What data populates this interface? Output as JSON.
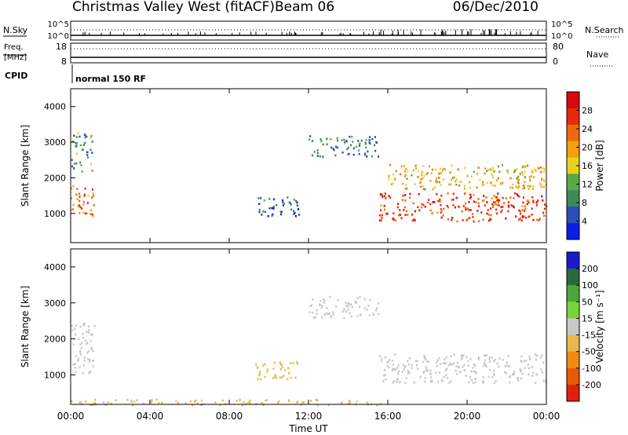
{
  "header": {
    "title": "Christmas Valley West (fitACF)",
    "beam": "Beam 06",
    "date": "06/Dec/2010"
  },
  "top_panels": {
    "nsky_label": "N.Sky",
    "nsearch_label": "N.Search",
    "freq_label_1": "Freq.",
    "freq_label_2": "[MHz]",
    "nave_label": "Nave",
    "cpid_label": "CPID",
    "cpid_text": "normal 150 RF",
    "noise_ticks_left": [
      "10^5",
      "10^0"
    ],
    "noise_ticks_right": [
      "10^5",
      "10^0"
    ],
    "freq_ticks": [
      "18",
      "8"
    ],
    "nave_ticks": [
      "80",
      "0"
    ]
  },
  "colors": {
    "power_scale": [
      "#0a1ee6",
      "#2a4fb8",
      "#3d8a5a",
      "#5aa84a",
      "#e6d21e",
      "#f0a010",
      "#f06a0a",
      "#e62a0a",
      "#d80a0a"
    ],
    "velocity_scale": [
      "#1a1ad0",
      "#2a6a3a",
      "#4aa83a",
      "#7ad43a",
      "#c8c8c8",
      "#e8b84a",
      "#f08a10",
      "#e85a0a",
      "#e0200a"
    ]
  },
  "chart_data": [
    {
      "type": "heatmap",
      "name": "power",
      "xlabel": "",
      "ylabel": "Slant Range [km]",
      "xlim": [
        "00:00",
        "24:00"
      ],
      "ylim": [
        180,
        4500
      ],
      "yticks": [
        "4000",
        "3000",
        "2000",
        "1000"
      ],
      "colorbar_label": "Power [dB]",
      "colorbar_ticks": [
        "28",
        "24",
        "20",
        "16",
        "12",
        "8",
        "4"
      ],
      "clim": [
        0,
        32
      ],
      "regions": [
        {
          "t0": 0.0,
          "t1": 1.2,
          "r0": 900,
          "r1": 1800,
          "level": 22
        },
        {
          "t0": 0.0,
          "t1": 1.1,
          "r0": 2200,
          "r1": 3300,
          "level": 10
        },
        {
          "t0": 9.2,
          "t1": 11.5,
          "r0": 950,
          "r1": 1500,
          "level": 6
        },
        {
          "t0": 12.0,
          "t1": 15.5,
          "r0": 2600,
          "r1": 3200,
          "level": 9
        },
        {
          "t0": 15.5,
          "t1": 24.0,
          "r0": 800,
          "r1": 1600,
          "level": 26
        },
        {
          "t0": 16.0,
          "t1": 24.0,
          "r0": 1700,
          "r1": 2400,
          "level": 18
        }
      ]
    },
    {
      "type": "heatmap",
      "name": "velocity",
      "xlabel": "Time UT",
      "ylabel": "Slant Range [km]",
      "xlim": [
        "00:00",
        "24:00"
      ],
      "ylim": [
        180,
        4500
      ],
      "xticks": [
        "00:00",
        "04:00",
        "08:00",
        "12:00",
        "16:00",
        "20:00",
        "00:00"
      ],
      "yticks": [
        "4000",
        "3000",
        "2000",
        "1000"
      ],
      "colorbar_label": "Velocity [m s⁻¹]",
      "colorbar_ticks": [
        "200",
        "100",
        "50",
        "15",
        "-15",
        "-50",
        "-100",
        "-200"
      ],
      "clim": [
        -250,
        250
      ],
      "regions": [
        {
          "t0": 0.0,
          "t1": 1.2,
          "r0": 1000,
          "r1": 2500,
          "level": 0
        },
        {
          "t0": 9.2,
          "t1": 11.5,
          "r0": 900,
          "r1": 1400,
          "level": -60
        },
        {
          "t0": 12.0,
          "t1": 15.5,
          "r0": 2600,
          "r1": 3200,
          "level": 0
        },
        {
          "t0": 15.5,
          "t1": 24.0,
          "r0": 800,
          "r1": 1600,
          "level": 0
        },
        {
          "t0": 0.0,
          "t1": 16.0,
          "r0": 180,
          "r1": 350,
          "level": -40
        }
      ]
    }
  ]
}
